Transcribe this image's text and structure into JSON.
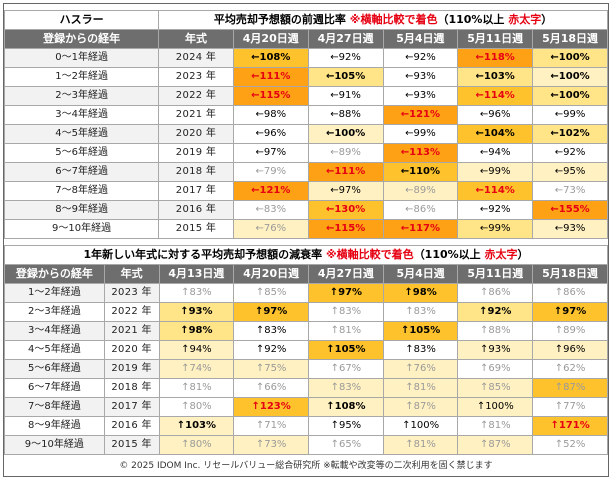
{
  "brand": "ハスラー",
  "table1": {
    "title": "平均売却予想額の前週比率",
    "title_note": "※横軸比較で着色",
    "title_paren_open": "（110%以上 ",
    "title_paren_red": "赤太字",
    "title_paren_close": "）",
    "col_label": "登録からの経年",
    "col_year": "年式",
    "weeks": [
      "4月20日週",
      "4月27日週",
      "5月4日週",
      "5月11日週",
      "5月18日週"
    ],
    "rows": [
      {
        "label": "0～1年経過",
        "year": "2024 年",
        "cells": [
          {
            "t": "←108%",
            "bg": "#fec22d",
            "s": "bold"
          },
          {
            "t": "←92%",
            "bg": "#ffffff",
            "s": "normal"
          },
          {
            "t": "←92%",
            "bg": "#ffffff",
            "s": "normal"
          },
          {
            "t": "←118%",
            "bg": "#fea115",
            "s": "red"
          },
          {
            "t": "←100%",
            "bg": "#ffe488",
            "s": "bold"
          }
        ]
      },
      {
        "label": "1～2年経過",
        "year": "2023 年",
        "cells": [
          {
            "t": "←111%",
            "bg": "#fea115",
            "s": "red"
          },
          {
            "t": "←105%",
            "bg": "#ffe488",
            "s": "bold"
          },
          {
            "t": "←93%",
            "bg": "#ffffff",
            "s": "normal"
          },
          {
            "t": "←103%",
            "bg": "#ffe488",
            "s": "bold"
          },
          {
            "t": "←100%",
            "bg": "#fff1c2",
            "s": "bold"
          }
        ]
      },
      {
        "label": "2～3年経過",
        "year": "2022 年",
        "cells": [
          {
            "t": "←115%",
            "bg": "#fea115",
            "s": "red"
          },
          {
            "t": "←91%",
            "bg": "#ffffff",
            "s": "normal"
          },
          {
            "t": "←93%",
            "bg": "#ffffff",
            "s": "normal"
          },
          {
            "t": "←114%",
            "bg": "#fec22d",
            "s": "red"
          },
          {
            "t": "←100%",
            "bg": "#ffe488",
            "s": "bold"
          }
        ]
      },
      {
        "label": "3～4年経過",
        "year": "2021 年",
        "cells": [
          {
            "t": "←98%",
            "bg": "#ffffff",
            "s": "normal"
          },
          {
            "t": "←88%",
            "bg": "#ffffff",
            "s": "normal"
          },
          {
            "t": "←121%",
            "bg": "#fea115",
            "s": "red"
          },
          {
            "t": "←96%",
            "bg": "#ffffff",
            "s": "normal"
          },
          {
            "t": "←99%",
            "bg": "#ffffff",
            "s": "normal"
          }
        ]
      },
      {
        "label": "4～5年経過",
        "year": "2020 年",
        "cells": [
          {
            "t": "←96%",
            "bg": "#ffffff",
            "s": "normal"
          },
          {
            "t": "←100%",
            "bg": "#fff1c2",
            "s": "bold"
          },
          {
            "t": "←99%",
            "bg": "#ffffff",
            "s": "normal"
          },
          {
            "t": "←104%",
            "bg": "#fec22d",
            "s": "bold"
          },
          {
            "t": "←102%",
            "bg": "#ffe488",
            "s": "bold"
          }
        ]
      },
      {
        "label": "5～6年経過",
        "year": "2019 年",
        "cells": [
          {
            "t": "←97%",
            "bg": "#ffffff",
            "s": "normal"
          },
          {
            "t": "←89%",
            "bg": "#ffffff",
            "s": "muted"
          },
          {
            "t": "←113%",
            "bg": "#fea115",
            "s": "red"
          },
          {
            "t": "←94%",
            "bg": "#ffffff",
            "s": "normal"
          },
          {
            "t": "←92%",
            "bg": "#ffffff",
            "s": "normal"
          }
        ]
      },
      {
        "label": "6～7年経過",
        "year": "2018 年",
        "cells": [
          {
            "t": "←79%",
            "bg": "#ffffff",
            "s": "muted"
          },
          {
            "t": "←111%",
            "bg": "#fea115",
            "s": "red"
          },
          {
            "t": "←110%",
            "bg": "#fec22d",
            "s": "bold"
          },
          {
            "t": "←99%",
            "bg": "#fff1c2",
            "s": "normal"
          },
          {
            "t": "←95%",
            "bg": "#fff1c2",
            "s": "normal"
          }
        ]
      },
      {
        "label": "7～8年経過",
        "year": "2017 年",
        "cells": [
          {
            "t": "←121%",
            "bg": "#fea115",
            "s": "red"
          },
          {
            "t": "←97%",
            "bg": "#fff1c2",
            "s": "normal"
          },
          {
            "t": "←89%",
            "bg": "#fff1c2",
            "s": "muted"
          },
          {
            "t": "←114%",
            "bg": "#fec22d",
            "s": "red"
          },
          {
            "t": "←73%",
            "bg": "#ffffff",
            "s": "muted"
          }
        ]
      },
      {
        "label": "8～9年経過",
        "year": "2016 年",
        "cells": [
          {
            "t": "←83%",
            "bg": "#ffffff",
            "s": "muted"
          },
          {
            "t": "←130%",
            "bg": "#fec22d",
            "s": "red"
          },
          {
            "t": "←86%",
            "bg": "#ffffff",
            "s": "muted"
          },
          {
            "t": "←92%",
            "bg": "#ffffff",
            "s": "normal"
          },
          {
            "t": "←155%",
            "bg": "#fea115",
            "s": "red"
          }
        ]
      },
      {
        "label": "9～10年経過",
        "year": "2015 年",
        "cells": [
          {
            "t": "←76%",
            "bg": "#fff1c2",
            "s": "muted"
          },
          {
            "t": "←115%",
            "bg": "#fea115",
            "s": "red"
          },
          {
            "t": "←117%",
            "bg": "#fea115",
            "s": "red"
          },
          {
            "t": "←99%",
            "bg": "#ffe488",
            "s": "normal"
          },
          {
            "t": "←93%",
            "bg": "#fff1c2",
            "s": "normal"
          }
        ]
      }
    ]
  },
  "table2": {
    "title": "1年新しい年式に対する平均売却予想額の減衰率",
    "title_note": "※横軸比較で着色",
    "title_paren_open": "（110%以上 ",
    "title_paren_red": "赤太字",
    "title_paren_close": "）",
    "col_label": "登録からの経年",
    "col_year": "年式",
    "weeks": [
      "4月13日週",
      "4月20日週",
      "4月27日週",
      "5月4日週",
      "5月11日週",
      "5月18日週"
    ],
    "rows": [
      {
        "label": "1～2年経過",
        "year": "2023 年",
        "cells": [
          {
            "t": "↑83%",
            "bg": "#ffffff",
            "s": "muted"
          },
          {
            "t": "↑85%",
            "bg": "#ffffff",
            "s": "muted"
          },
          {
            "t": "↑97%",
            "bg": "#fec22d",
            "s": "bold"
          },
          {
            "t": "↑98%",
            "bg": "#fec22d",
            "s": "bold"
          },
          {
            "t": "↑86%",
            "bg": "#ffffff",
            "s": "muted"
          },
          {
            "t": "↑86%",
            "bg": "#ffffff",
            "s": "muted"
          }
        ]
      },
      {
        "label": "2～3年経過",
        "year": "2022 年",
        "cells": [
          {
            "t": "↑93%",
            "bg": "#ffe488",
            "s": "bold"
          },
          {
            "t": "↑97%",
            "bg": "#fec22d",
            "s": "bold"
          },
          {
            "t": "↑83%",
            "bg": "#ffffff",
            "s": "muted"
          },
          {
            "t": "↑83%",
            "bg": "#ffffff",
            "s": "muted"
          },
          {
            "t": "↑92%",
            "bg": "#ffe488",
            "s": "bold"
          },
          {
            "t": "↑97%",
            "bg": "#fec22d",
            "s": "bold"
          }
        ]
      },
      {
        "label": "3～4年経過",
        "year": "2021 年",
        "cells": [
          {
            "t": "↑98%",
            "bg": "#ffe488",
            "s": "bold"
          },
          {
            "t": "↑83%",
            "bg": "#ffffff",
            "s": "normal"
          },
          {
            "t": "↑81%",
            "bg": "#ffffff",
            "s": "muted"
          },
          {
            "t": "↑105%",
            "bg": "#fec22d",
            "s": "bold"
          },
          {
            "t": "↑88%",
            "bg": "#ffffff",
            "s": "muted"
          },
          {
            "t": "↑89%",
            "bg": "#ffffff",
            "s": "muted"
          }
        ]
      },
      {
        "label": "4～5年経過",
        "year": "2020 年",
        "cells": [
          {
            "t": "↑94%",
            "bg": "#fff1c2",
            "s": "normal"
          },
          {
            "t": "↑92%",
            "bg": "#ffffff",
            "s": "normal"
          },
          {
            "t": "↑105%",
            "bg": "#fec22d",
            "s": "bold"
          },
          {
            "t": "↑83%",
            "bg": "#ffffff",
            "s": "normal"
          },
          {
            "t": "↑93%",
            "bg": "#fff1c2",
            "s": "normal"
          },
          {
            "t": "↑96%",
            "bg": "#fff1c2",
            "s": "normal"
          }
        ]
      },
      {
        "label": "5～6年経過",
        "year": "2019 年",
        "cells": [
          {
            "t": "↑74%",
            "bg": "#fff1c2",
            "s": "muted"
          },
          {
            "t": "↑75%",
            "bg": "#fff1c2",
            "s": "muted"
          },
          {
            "t": "↑67%",
            "bg": "#ffffff",
            "s": "muted"
          },
          {
            "t": "↑76%",
            "bg": "#fff1c2",
            "s": "muted"
          },
          {
            "t": "↑69%",
            "bg": "#ffffff",
            "s": "muted"
          },
          {
            "t": "↑62%",
            "bg": "#ffffff",
            "s": "muted"
          }
        ]
      },
      {
        "label": "6～7年経過",
        "year": "2018 年",
        "cells": [
          {
            "t": "↑81%",
            "bg": "#ffffff",
            "s": "muted"
          },
          {
            "t": "↑66%",
            "bg": "#ffffff",
            "s": "muted"
          },
          {
            "t": "↑83%",
            "bg": "#fff1c2",
            "s": "muted"
          },
          {
            "t": "↑81%",
            "bg": "#fff1c2",
            "s": "muted"
          },
          {
            "t": "↑85%",
            "bg": "#fff1c2",
            "s": "muted"
          },
          {
            "t": "↑87%",
            "bg": "#fec22d",
            "s": "muted"
          }
        ]
      },
      {
        "label": "7～8年経過",
        "year": "2017 年",
        "cells": [
          {
            "t": "↑80%",
            "bg": "#ffffff",
            "s": "muted"
          },
          {
            "t": "↑123%",
            "bg": "#fec22d",
            "s": "red"
          },
          {
            "t": "↑108%",
            "bg": "#fff1c2",
            "s": "bold"
          },
          {
            "t": "↑87%",
            "bg": "#fff1c2",
            "s": "muted"
          },
          {
            "t": "↑100%",
            "bg": "#fff1c2",
            "s": "normal"
          },
          {
            "t": "↑77%",
            "bg": "#ffffff",
            "s": "muted"
          }
        ]
      },
      {
        "label": "8～9年経過",
        "year": "2016 年",
        "cells": [
          {
            "t": "↑103%",
            "bg": "#fff1c2",
            "s": "bold"
          },
          {
            "t": "↑71%",
            "bg": "#ffffff",
            "s": "muted"
          },
          {
            "t": "↑95%",
            "bg": "#ffffff",
            "s": "normal"
          },
          {
            "t": "↑100%",
            "bg": "#ffffff",
            "s": "normal"
          },
          {
            "t": "↑81%",
            "bg": "#ffffff",
            "s": "muted"
          },
          {
            "t": "↑171%",
            "bg": "#fec22d",
            "s": "red"
          }
        ]
      },
      {
        "label": "9～10年経過",
        "year": "2015 年",
        "cells": [
          {
            "t": "↑80%",
            "bg": "#fff1c2",
            "s": "muted"
          },
          {
            "t": "↑73%",
            "bg": "#fff1c2",
            "s": "muted"
          },
          {
            "t": "↑65%",
            "bg": "#ffffff",
            "s": "muted"
          },
          {
            "t": "↑81%",
            "bg": "#fff1c2",
            "s": "muted"
          },
          {
            "t": "↑87%",
            "bg": "#fff1c2",
            "s": "muted"
          },
          {
            "t": "↑52%",
            "bg": "#ffffff",
            "s": "muted"
          }
        ]
      }
    ]
  },
  "footer": "© 2025 IDOM Inc. リセールバリュー総合研究所 ※転載や改変等の二次利用を固く禁じます",
  "colors": {
    "header_bg": "#6e6e6e",
    "alert_red": "#e60012",
    "heat_high": "#fea115",
    "heat_mid": "#fec22d",
    "heat_low": "#ffe488",
    "heat_faint": "#fff1c2"
  }
}
